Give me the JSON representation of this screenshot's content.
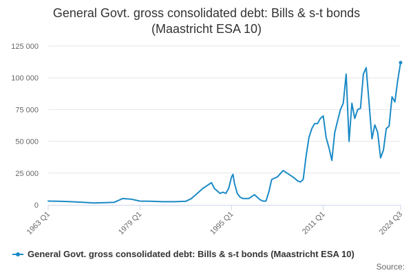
{
  "chart_data": {
    "type": "line",
    "title": "General Govt. gross consolidated debt: Bills & s-t bonds",
    "subtitle": "(Maastricht ESA 10)",
    "xlabel": "",
    "ylabel": "",
    "x_tick_labels": [
      "1963 Q1",
      "1979 Q1",
      "1995 Q1",
      "2011 Q1",
      "2024 Q3"
    ],
    "y_tick_labels": [
      "0",
      "25 000",
      "50 000",
      "75 000",
      "100 000",
      "125 000"
    ],
    "ylim": [
      0,
      125000
    ],
    "x_range": [
      "1963 Q1",
      "2024 Q3"
    ],
    "grid": "horizontal",
    "legend_position": "bottom",
    "series": [
      {
        "name": "General Govt. gross consolidated debt: Bills & s-t bonds (Maastricht ESA 10)",
        "color": "#1a8ac6",
        "x": [
          "1963 Q1",
          "1965 Q1",
          "1967 Q1",
          "1969 Q1",
          "1971 Q1",
          "1973 Q1",
          "1974 Q3",
          "1976 Q1",
          "1977 Q3",
          "1979 Q1",
          "1981 Q1",
          "1983 Q1",
          "1985 Q1",
          "1987 Q1",
          "1988 Q1",
          "1989 Q1",
          "1990 Q1",
          "1991 Q1",
          "1991 Q3",
          "1992 Q1",
          "1992 Q3",
          "1993 Q1",
          "1993 Q3",
          "1994 Q1",
          "1994 Q3",
          "1995 Q1",
          "1995 Q2",
          "1995 Q3",
          "1996 Q1",
          "1996 Q3",
          "1997 Q1",
          "1998 Q1",
          "1999 Q1",
          "2000 Q1",
          "2000 Q3",
          "2001 Q1",
          "2001 Q3",
          "2002 Q1",
          "2003 Q1",
          "2004 Q1",
          "2005 Q1",
          "2006 Q1",
          "2006 Q3",
          "2007 Q1",
          "2007 Q3",
          "2008 Q1",
          "2008 Q3",
          "2009 Q1",
          "2009 Q3",
          "2010 Q1",
          "2010 Q3",
          "2011 Q1",
          "2011 Q3",
          "2012 Q1",
          "2012 Q3",
          "2013 Q1",
          "2013 Q3",
          "2014 Q1",
          "2014 Q3",
          "2015 Q1",
          "2015 Q3",
          "2016 Q1",
          "2016 Q3",
          "2017 Q1",
          "2017 Q3",
          "2018 Q1",
          "2018 Q3",
          "2019 Q1",
          "2019 Q3",
          "2020 Q1",
          "2020 Q3",
          "2021 Q1",
          "2021 Q3",
          "2022 Q1",
          "2022 Q3",
          "2023 Q1",
          "2023 Q3",
          "2024 Q1",
          "2024 Q3"
        ],
        "values": [
          3000,
          2800,
          2500,
          2000,
          1500,
          1800,
          2000,
          5000,
          4500,
          3000,
          2800,
          2500,
          2500,
          2800,
          5000,
          9000,
          13000,
          16000,
          17500,
          13000,
          11000,
          9000,
          10000,
          9000,
          13000,
          22000,
          24000,
          17000,
          9000,
          6000,
          5000,
          5000,
          8000,
          4000,
          3000,
          3000,
          10000,
          20000,
          22000,
          27000,
          24000,
          21000,
          19000,
          18000,
          20000,
          38000,
          53000,
          60000,
          64000,
          64000,
          68000,
          70000,
          53000,
          45000,
          35000,
          57000,
          66000,
          75000,
          80000,
          103000,
          50000,
          80000,
          68000,
          75000,
          76000,
          103000,
          108000,
          80000,
          52000,
          63000,
          57000,
          37000,
          43000,
          60000,
          62000,
          85000,
          81000,
          98000,
          112000
        ]
      }
    ]
  },
  "legend": {
    "label": "General Govt. gross consolidated debt: Bills & s-t bonds (Maastricht ESA 10)"
  },
  "source": {
    "label": "Source:"
  }
}
